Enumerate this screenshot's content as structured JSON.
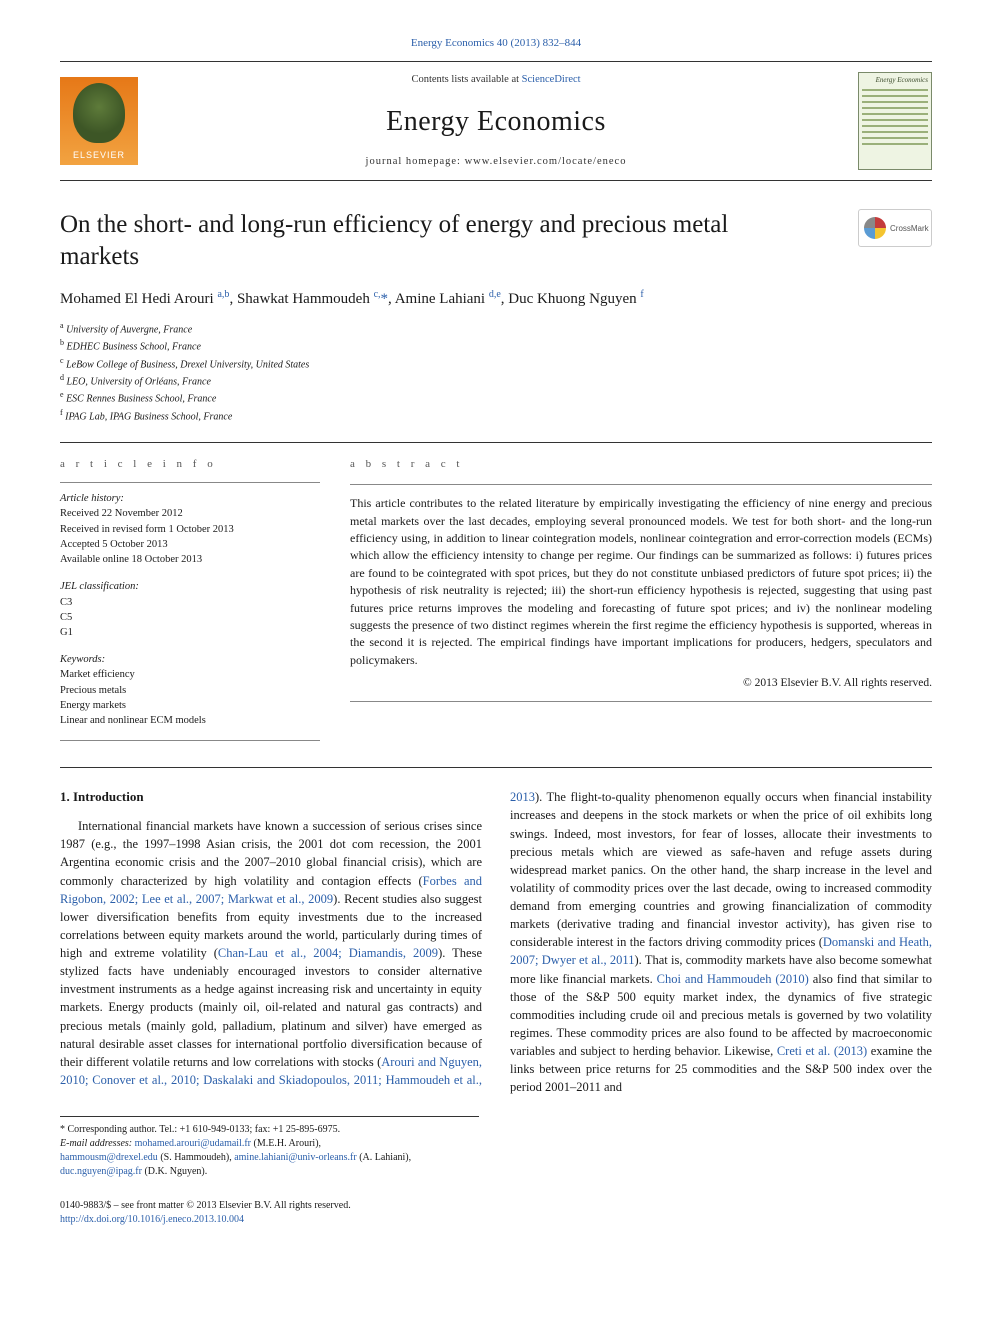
{
  "journal": {
    "ref_line": "Energy Economics 40 (2013) 832–844",
    "contents_prefix": "Contents lists available at ",
    "contents_link": "ScienceDirect",
    "name": "Energy Economics",
    "homepage": "journal homepage: www.elsevier.com/locate/eneco",
    "publisher": "ELSEVIER",
    "cover_title": "Energy Economics"
  },
  "crossmark": {
    "label": "CrossMark"
  },
  "article": {
    "title": "On the short- and long-run efficiency of energy and precious metal markets",
    "authors_html": "Mohamed El Hedi Arouri <sup>a,b</sup>, Shawkat Hammoudeh <sup>c,</sup><span class='star'>*</span>, Amine Lahiani <sup>d,e</sup>, Duc Khuong Nguyen <sup>f</sup>",
    "affiliations": [
      {
        "mark": "a",
        "text": "University of Auvergne, France"
      },
      {
        "mark": "b",
        "text": "EDHEC Business School, France"
      },
      {
        "mark": "c",
        "text": "LeBow College of Business, Drexel University, United States"
      },
      {
        "mark": "d",
        "text": "LEO, University of Orléans, France"
      },
      {
        "mark": "e",
        "text": "ESC Rennes Business School, France"
      },
      {
        "mark": "f",
        "text": "IPAG Lab, IPAG Business School, France"
      }
    ]
  },
  "info": {
    "heading": "a r t i c l e   i n f o",
    "history_label": "Article history:",
    "history": [
      "Received 22 November 2012",
      "Received in revised form 1 October 2013",
      "Accepted 5 October 2013",
      "Available online 18 October 2013"
    ],
    "jel_label": "JEL classification:",
    "jel": [
      "C3",
      "C5",
      "G1"
    ],
    "keywords_label": "Keywords:",
    "keywords": [
      "Market efficiency",
      "Precious metals",
      "Energy markets",
      "Linear and nonlinear ECM models"
    ]
  },
  "abstract": {
    "heading": "a b s t r a c t",
    "text": "This article contributes to the related literature by empirically investigating the efficiency of nine energy and precious metal markets over the last decades, employing several pronounced models. We test for both short- and the long-run efficiency using, in addition to linear cointegration models, nonlinear cointegration and error-correction models (ECMs) which allow the efficiency intensity to change per regime. Our findings can be summarized as follows: i) futures prices are found to be cointegrated with spot prices, but they do not constitute unbiased predictors of future spot prices; ii) the hypothesis of risk neutrality is rejected; iii) the short-run efficiency hypothesis is rejected, suggesting that using past futures price returns improves the modeling and forecasting of future spot prices; and iv) the nonlinear modeling suggests the presence of two distinct regimes wherein the first regime the efficiency hypothesis is supported, whereas in the second it is rejected. The empirical findings have important implications for producers, hedgers, speculators and policymakers.",
    "copyright": "© 2013 Elsevier B.V. All rights reserved."
  },
  "body": {
    "section_heading": "1. Introduction",
    "para1_a": "International financial markets have known a succession of serious crises since 1987 (e.g., the 1997–1998 Asian crisis, the 2001 dot com recession, the 2001 Argentina economic crisis and the 2007–2010 global financial crisis), which are commonly characterized by high volatility and contagion effects (",
    "cite1": "Forbes and Rigobon, 2002; Lee et al., 2007; Markwat et al., 2009",
    "para1_b": "). Recent studies also suggest lower diversification benefits from equity investments due to the increased correlations between equity markets around the world, particularly during times of high and extreme volatility (",
    "cite2": "Chan-Lau et al., 2004; Diamandis, 2009",
    "para1_c": "). These stylized facts have undeniably encouraged investors to consider alternative investment instruments as a hedge against increasing risk and uncertainty in equity markets. Energy products (mainly oil, oil-related and natural gas contracts) and precious metals (mainly gold, palladium, platinum and silver) have emerged as natural desirable asset classes for international portfolio",
    "para2_a": "diversification because of their different volatile returns and low correlations with stocks (",
    "cite3": "Arouri and Nguyen, 2010; Conover et al., 2010; Daskalaki and Skiadopoulos, 2011; Hammoudeh et al., 2013",
    "para2_b": "). The flight-to-quality phenomenon equally occurs when financial instability increases and deepens in the stock markets or when the price of oil exhibits long swings. Indeed, most investors, for fear of losses, allocate their investments to precious metals which are viewed as safe-haven and refuge assets during widespread market panics. On the other hand, the sharp increase in the level and volatility of commodity prices over the last decade, owing to increased commodity demand from emerging countries and growing financialization of commodity markets (derivative trading and financial investor activity), has given rise to considerable interest in the factors driving commodity prices (",
    "cite4": "Domanski and Heath, 2007; Dwyer et al., 2011",
    "para2_c": "). That is, commodity markets have also become somewhat more like financial markets. ",
    "cite5": "Choi and Hammoudeh (2010)",
    "para2_d": " also find that similar to those of the S&P 500 equity market index, the dynamics of five strategic commodities including crude oil and precious metals is governed by two volatility regimes. These commodity prices are also found to be affected by macroeconomic variables and subject to herding behavior. Likewise, ",
    "cite6": "Creti et al. (2013)",
    "para2_e": " examine the links between price returns for 25 commodities and the S&P 500 index over the period 2001–2011 and"
  },
  "footnote": {
    "corr": "* Corresponding author. Tel.: +1 610-949-0133; fax: +1 25-895-6975.",
    "email_label": "E-mail addresses: ",
    "email1": "mohamed.arouri@udamail.fr",
    "name1": " (M.E.H. Arouri),",
    "email2": "hammousm@drexel.edu",
    "name2": " (S. Hammoudeh), ",
    "email3": "amine.lahiani@univ-orleans.fr",
    "name3": " (A. Lahiani),",
    "email4": "duc.nguyen@ipag.fr",
    "name4": " (D.K. Nguyen)."
  },
  "footer": {
    "left": "0140-9883/$ – see front matter © 2013 Elsevier B.V. All rights reserved.",
    "doi": "http://dx.doi.org/10.1016/j.eneco.2013.10.004"
  },
  "colors": {
    "link": "#2b5faa",
    "text": "#1a1a1a",
    "rule": "#333333"
  }
}
